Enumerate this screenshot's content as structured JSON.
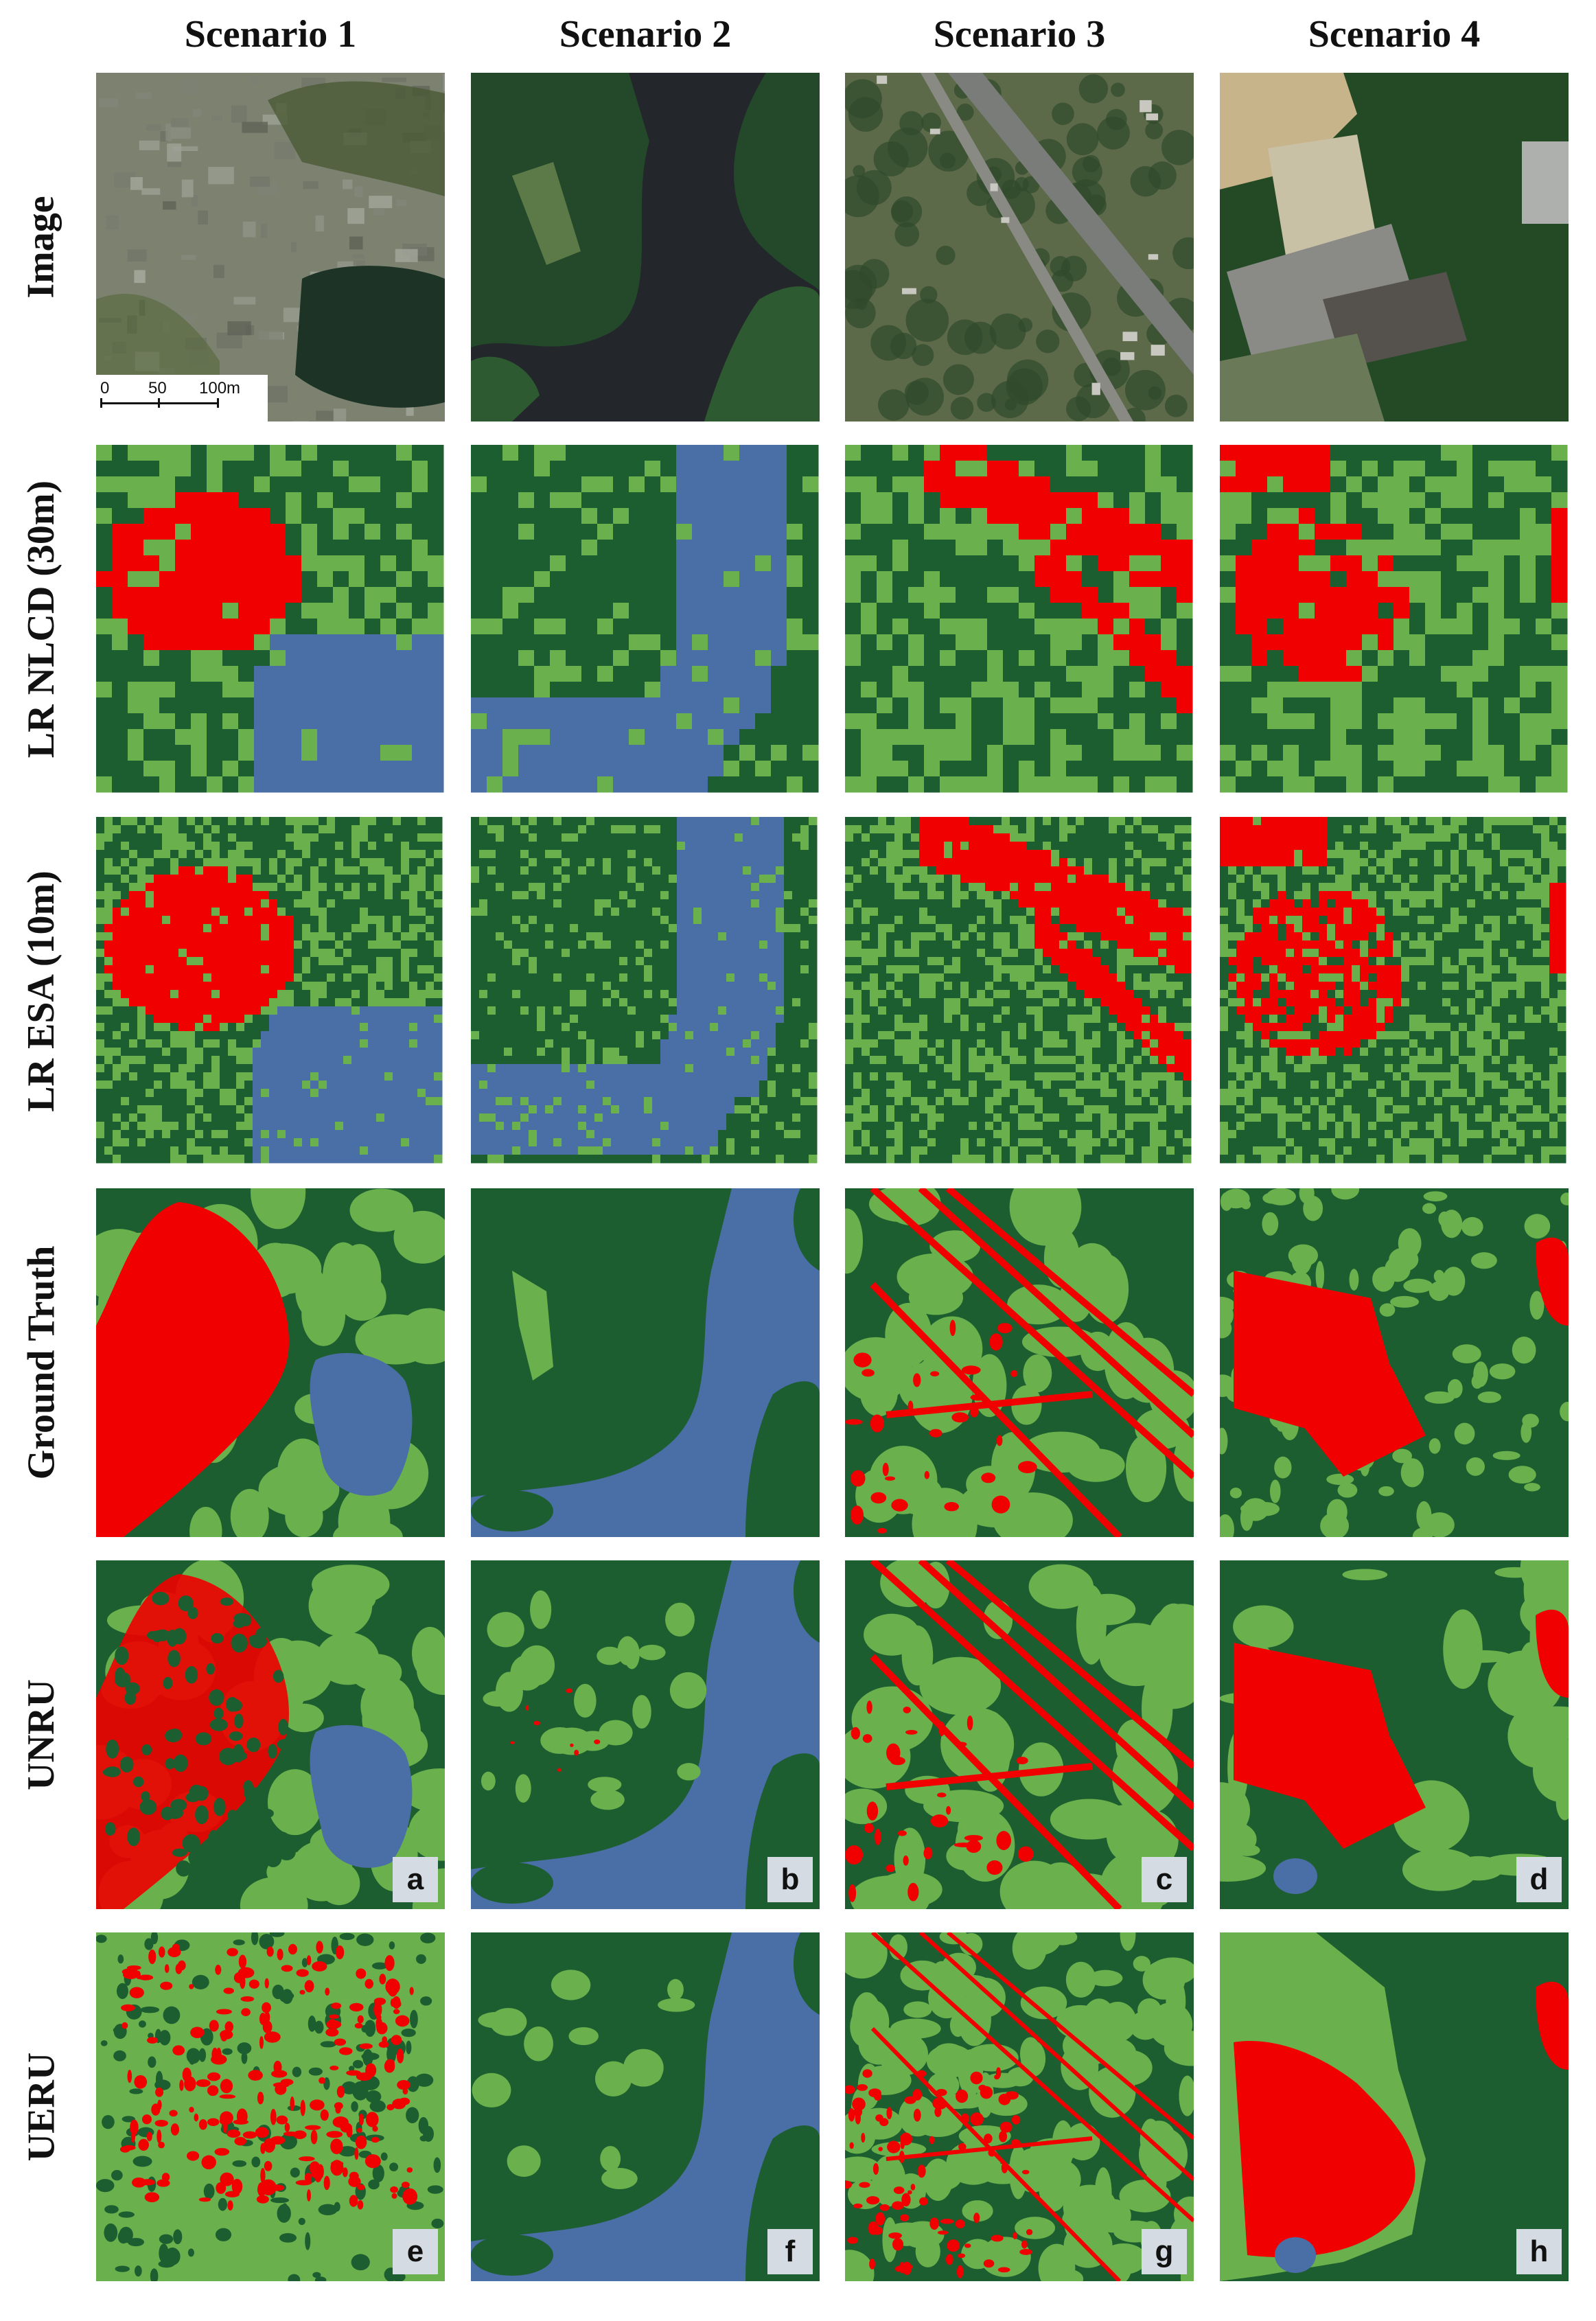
{
  "columns": [
    "Scenario 1",
    "Scenario 2",
    "Scenario 3",
    "Scenario 4"
  ],
  "rows": [
    "Image",
    "LR NLCD (30m)",
    "LR ESA (10m)",
    "Ground Truth",
    "UNRU",
    "UERU"
  ],
  "scale_bar": {
    "labels": [
      "0",
      "50",
      "100m"
    ]
  },
  "panel_labels": {
    "UNRU": [
      "a",
      "b",
      "c",
      "d"
    ],
    "UERU": [
      "e",
      "f",
      "g",
      "h"
    ]
  },
  "colors": {
    "forest": "#1d5e30",
    "grass": "#6ab04c",
    "built": "#f00000",
    "water": "#4a6ea6"
  }
}
